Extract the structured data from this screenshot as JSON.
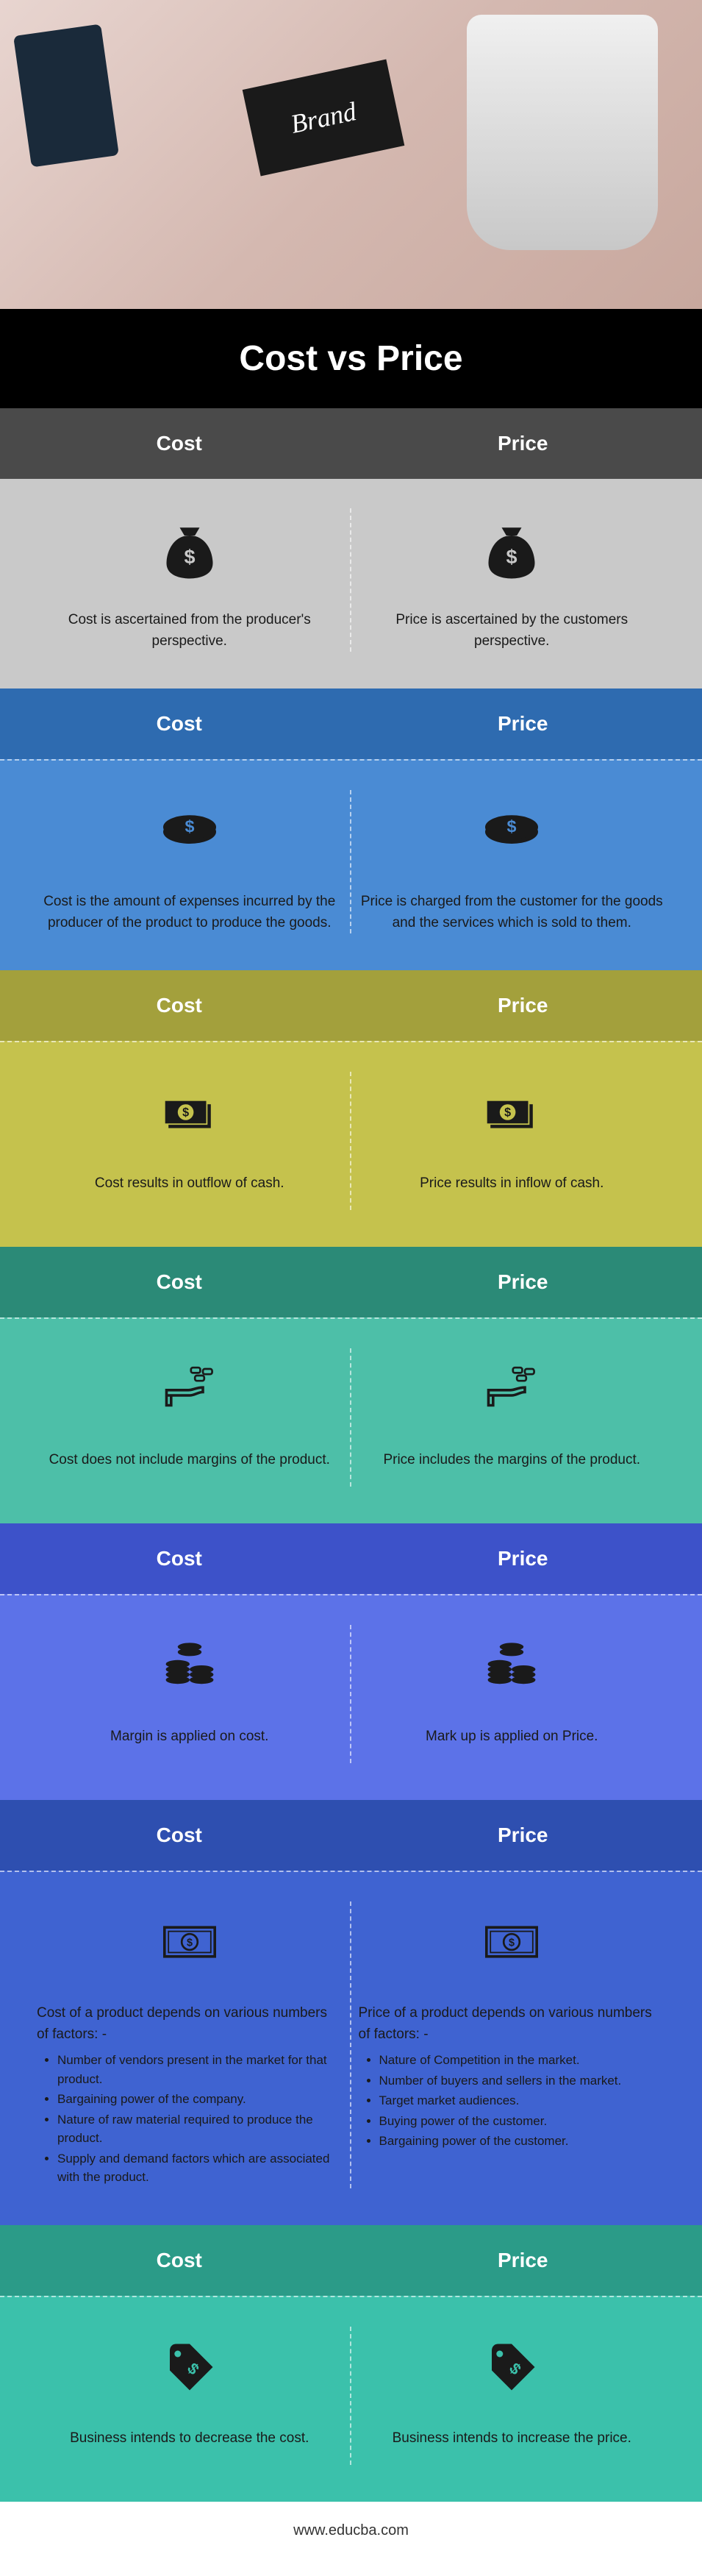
{
  "hero_tag": "Brand",
  "title": "Cost vs Price",
  "labels": {
    "cost": "Cost",
    "price": "Price"
  },
  "sections": [
    {
      "cost": "Cost is ascertained from the producer's perspective.",
      "price": "Price is ascertained by the customers perspective."
    },
    {
      "cost": "Cost is the amount of expenses incurred by the producer of the product to produce the goods.",
      "price": "Price is charged from the customer for the goods and the services which is sold to them."
    },
    {
      "cost": "Cost results in outflow of cash.",
      "price": "Price results in inflow of cash."
    },
    {
      "cost": "Cost does not include margins of the product.",
      "price": "Price includes the margins of the product."
    },
    {
      "cost": "Margin is applied on cost.",
      "price": "Mark up is applied on Price."
    },
    {
      "cost_intro": "Cost of a product depends on various numbers of factors: -",
      "cost_list": [
        "Number of vendors present in the market for that product.",
        "Bargaining power of the company.",
        "Nature of raw material required to produce the product.",
        "Supply and demand factors which are associated with the product."
      ],
      "price_intro": "Price of a product depends on various numbers of factors: -",
      "price_list": [
        "Nature of Competition in the market.",
        "Number of buyers and sellers in the market.",
        "Target market audiences.",
        "Buying power of the customer.",
        "Bargaining power of the customer."
      ]
    },
    {
      "cost": "Business intends to decrease the cost.",
      "price": "Business intends to increase the price."
    }
  ],
  "footer": "www.educba.com"
}
